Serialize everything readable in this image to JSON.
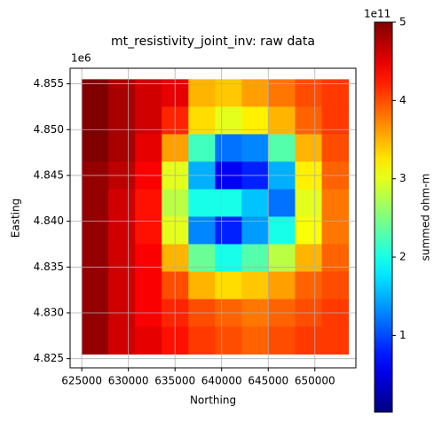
{
  "chart_data": {
    "type": "heatmap",
    "title": "mt_resistivity_joint_inv: raw data",
    "xlabel": "Northing",
    "ylabel": "Easting",
    "y_offset_label": "1e6",
    "colorbar_label": "summed ohm-m",
    "colorbar_offset_label": "1e11",
    "colormap": "jet",
    "grid": true,
    "xlim": [
      623750,
      654400
    ],
    "xticks": [
      625000,
      630000,
      635000,
      640000,
      645000,
      650000
    ],
    "ylim": [
      4.824,
      4.8567
    ],
    "yticks": [
      4.825,
      {
        "value": 4.83,
        "label": "4.830"
      },
      4.835,
      {
        "value": 4.84,
        "label": "4.840"
      },
      4.845,
      {
        "value": 4.85,
        "label": "4.850"
      },
      4.855
    ],
    "x_extent": [
      625000,
      653600
    ],
    "y_extent": [
      4.8555,
      4.8255
    ],
    "clim": [
      0.02,
      5
    ],
    "cticks": [
      1,
      2,
      3,
      4,
      5
    ],
    "z": [
      [
        5,
        4.8,
        4.6,
        4.5,
        3.5,
        3.4,
        3.6,
        3.8,
        4.0,
        4.1
      ],
      [
        5,
        4.8,
        4.6,
        4.2,
        3.3,
        3.0,
        3.2,
        3.5,
        3.9,
        4.1
      ],
      [
        5,
        4.8,
        4.5,
        3.6,
        2.2,
        1.2,
        1.3,
        2.3,
        3.5,
        4.0
      ],
      [
        4.9,
        4.7,
        4.4,
        3.0,
        1.5,
        0.6,
        0.8,
        1.5,
        3.2,
        3.9
      ],
      [
        4.9,
        4.6,
        4.3,
        2.8,
        2.0,
        2.0,
        1.6,
        1.2,
        3.0,
        3.8
      ],
      [
        4.9,
        4.6,
        4.3,
        3.0,
        1.3,
        0.8,
        1.4,
        2.0,
        3.1,
        3.8
      ],
      [
        4.9,
        4.6,
        4.4,
        3.5,
        2.4,
        2.0,
        2.3,
        2.8,
        3.5,
        3.9
      ],
      [
        4.9,
        4.6,
        4.4,
        4.0,
        3.5,
        3.3,
        3.4,
        3.6,
        3.9,
        4.0
      ],
      [
        4.9,
        4.6,
        4.4,
        4.2,
        4.0,
        3.9,
        3.8,
        3.9,
        4.0,
        4.1
      ],
      [
        4.9,
        4.6,
        4.5,
        4.3,
        4.1,
        4.0,
        3.9,
        4.0,
        4.1,
        4.1
      ]
    ]
  }
}
